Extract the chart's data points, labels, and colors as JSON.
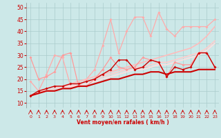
{
  "background_color": "#cce8e8",
  "grid_color": "#aacccc",
  "xlabel": "Vent moyen/en rafales ( km/h )",
  "xlim": [
    -0.5,
    23.5
  ],
  "ylim": [
    8,
    52
  ],
  "yticks": [
    10,
    15,
    20,
    25,
    30,
    35,
    40,
    45,
    50
  ],
  "xticks": [
    0,
    1,
    2,
    3,
    4,
    5,
    6,
    7,
    8,
    9,
    10,
    11,
    12,
    13,
    14,
    15,
    16,
    17,
    18,
    19,
    20,
    21,
    22,
    23
  ],
  "tick_color": "#cc0000",
  "series": [
    {
      "x": [
        0,
        1,
        2,
        3,
        4,
        5,
        6,
        7,
        8,
        9,
        10,
        11,
        12,
        13,
        14,
        15,
        16,
        17,
        18,
        19,
        20,
        21,
        22,
        23
      ],
      "y": [
        19,
        15,
        22,
        30,
        29,
        17,
        17,
        20,
        24,
        34,
        45,
        31,
        40,
        46,
        46,
        38,
        48,
        41,
        38,
        42,
        42,
        42,
        42,
        45
      ],
      "color": "#ffaaaa",
      "lw": 0.9,
      "marker": "D",
      "ms": 2.0,
      "alpha": 1.0,
      "zorder": 2
    },
    {
      "x": [
        0,
        1,
        2,
        3,
        4,
        5,
        6,
        7,
        8,
        9,
        10,
        11,
        12,
        13,
        14,
        15,
        16,
        17,
        18,
        19,
        20,
        21,
        22,
        23
      ],
      "y": [
        29,
        20,
        21,
        23,
        30,
        31,
        17,
        17,
        20,
        24,
        29,
        25,
        24,
        25,
        29,
        28,
        27,
        21,
        27,
        26,
        26,
        31,
        31,
        25
      ],
      "color": "#ff9999",
      "lw": 0.9,
      "marker": "D",
      "ms": 2.0,
      "alpha": 1.0,
      "zorder": 3
    },
    {
      "x": [
        0,
        1,
        2,
        3,
        4,
        5,
        6,
        7,
        8,
        9,
        10,
        11,
        12,
        13,
        14,
        15,
        16,
        17,
        18,
        19,
        20,
        21,
        22,
        23
      ],
      "y": [
        13,
        14,
        16,
        17,
        17,
        18,
        19,
        20,
        21,
        22,
        23,
        24,
        25,
        26,
        27,
        28,
        29,
        30,
        31,
        32,
        33,
        35,
        38,
        42
      ],
      "color": "#ffbbbb",
      "lw": 1.2,
      "marker": null,
      "ms": 0,
      "alpha": 1.0,
      "zorder": 2
    },
    {
      "x": [
        0,
        1,
        2,
        3,
        4,
        5,
        6,
        7,
        8,
        9,
        10,
        11,
        12,
        13,
        14,
        15,
        16,
        17,
        18,
        19,
        20,
        21,
        22,
        23
      ],
      "y": [
        13,
        14,
        15,
        16,
        17,
        17,
        18,
        19,
        20,
        21,
        22,
        23,
        24,
        25,
        25,
        26,
        27,
        27,
        28,
        29,
        30,
        31,
        33,
        36
      ],
      "color": "#ffcccc",
      "lw": 1.2,
      "marker": null,
      "ms": 0,
      "alpha": 1.0,
      "zorder": 2
    },
    {
      "x": [
        0,
        1,
        2,
        3,
        4,
        5,
        6,
        7,
        8,
        9,
        10,
        11,
        12,
        13,
        14,
        15,
        16,
        17,
        18,
        19,
        20,
        21,
        22,
        23
      ],
      "y": [
        13,
        14,
        15,
        15,
        16,
        17,
        17,
        18,
        19,
        20,
        21,
        22,
        23,
        24,
        24,
        25,
        26,
        26,
        27,
        28,
        29,
        30,
        32,
        35
      ],
      "color": "#ffdddd",
      "lw": 1.2,
      "marker": null,
      "ms": 0,
      "alpha": 1.0,
      "zorder": 2
    },
    {
      "x": [
        0,
        1,
        2,
        3,
        4,
        5,
        6,
        7,
        8,
        9,
        10,
        11,
        12,
        13,
        14,
        15,
        16,
        17,
        18,
        19,
        20,
        21,
        22,
        23
      ],
      "y": [
        13,
        15,
        16,
        17,
        17,
        18,
        18,
        19,
        20,
        22,
        24,
        28,
        28,
        24,
        25,
        28,
        27,
        21,
        25,
        24,
        25,
        31,
        31,
        25
      ],
      "color": "#cc0000",
      "lw": 1.0,
      "marker": "D",
      "ms": 2.0,
      "alpha": 1.0,
      "zorder": 5
    },
    {
      "x": [
        0,
        1,
        2,
        3,
        4,
        5,
        6,
        7,
        8,
        9,
        10,
        11,
        12,
        13,
        14,
        15,
        16,
        17,
        18,
        19,
        20,
        21,
        22,
        23
      ],
      "y": [
        13,
        14,
        15,
        15,
        16,
        16,
        17,
        17,
        18,
        19,
        20,
        20,
        21,
        22,
        22,
        23,
        23,
        22,
        23,
        23,
        23,
        24,
        24,
        24
      ],
      "color": "#cc0000",
      "lw": 1.5,
      "marker": null,
      "ms": 0,
      "alpha": 1.0,
      "zorder": 5
    }
  ]
}
